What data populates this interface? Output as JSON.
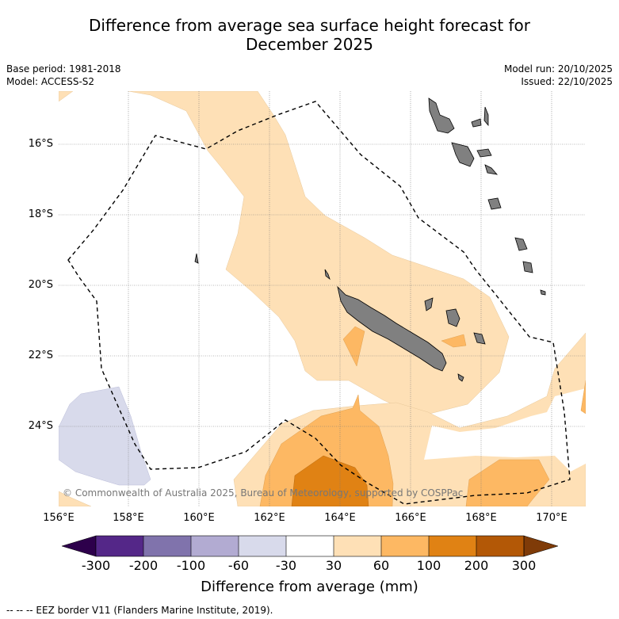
{
  "title_line1": "Difference from average sea surface height forecast for",
  "title_line2": "December 2025",
  "base_period": "Base period: 1981-2018",
  "model": "Model: ACCESS-S2",
  "model_run": "Model run: 20/10/2025",
  "issued": "Issued: 22/10/2025",
  "lat_labels": [
    "16°S",
    "18°S",
    "20°S",
    "22°S",
    "24°S"
  ],
  "lon_labels": [
    "156°E",
    "158°E",
    "160°E",
    "162°E",
    "164°E",
    "166°E",
    "168°E",
    "170°E"
  ],
  "copyright": "© Commonwealth of Australia 2025, Bureau of Meteorology, supported by COSPPac",
  "colorbar": {
    "ticks": [
      "-300",
      "-200",
      "-100",
      "-60",
      "-30",
      "30",
      "60",
      "100",
      "200",
      "300"
    ],
    "label": "Difference from average (mm)",
    "colors": {
      "below_-300": "#2d004b",
      "-300_-200": "#542788",
      "-200_-100": "#8073ac",
      "-100_-60": "#b2abd2",
      "-60_-30": "#d8daeb",
      "-30_30": "#ffffff",
      "30_60": "#fee0b6",
      "60_100": "#fdb863",
      "100_200": "#e08214",
      "200_300": "#b35806",
      "above_300": "#7f3b08"
    }
  },
  "legend": "--  --  -- EEZ border V11 (Flanders Marine Institute, 2019).",
  "land_color": "#808080"
}
